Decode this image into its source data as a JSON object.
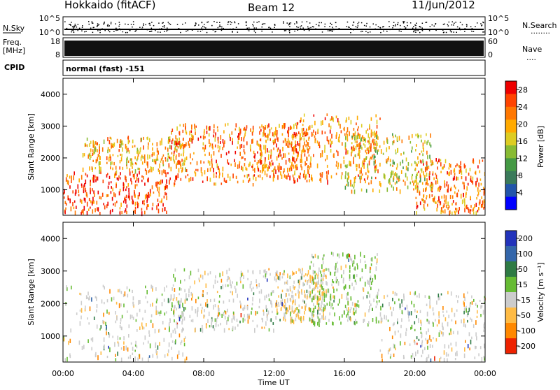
{
  "header": {
    "station": "Hokkaido (fitACF)",
    "beam": "Beam 12",
    "date": "11/Jun/2012"
  },
  "strips": {
    "nsky_label": "N.Sky",
    "nsearch_label": "N.Search",
    "nsearch_dots": "........",
    "nsky_ticks": [
      "10^5",
      "10^0"
    ],
    "nsearch_ticks": [
      "10^5",
      "10^0"
    ],
    "freq_label": "Freq.",
    "freq_unit": "[MHz]",
    "freq_ticks": [
      "18",
      "8"
    ],
    "nave_label": "Nave",
    "nave_dots": "....",
    "nave_ticks": [
      "60",
      "0"
    ],
    "cpid_label": "CPID",
    "cpid_text": "normal (fast) -151"
  },
  "chart_data": [
    {
      "type": "heatmap",
      "title": "",
      "xlabel": "Time UT",
      "ylabel": "Slant Range [km]",
      "xlim": [
        0,
        24
      ],
      "ylim": [
        200,
        4500
      ],
      "x_ticks": [
        "00:00",
        "04:00",
        "08:00",
        "12:00",
        "16:00",
        "20:00",
        "00:00"
      ],
      "x_tick_values": [
        0,
        4,
        8,
        12,
        16,
        20,
        24
      ],
      "y_ticks": [
        "1000",
        "2000",
        "3000",
        "4000"
      ],
      "y_tick_values": [
        1000,
        2000,
        3000,
        4000
      ],
      "colorbar": {
        "label": "Power [dB]",
        "ticks": [
          "4",
          "8",
          "12",
          "16",
          "20",
          "24",
          "28"
        ],
        "range": [
          0,
          30
        ],
        "colors": [
          "#0000ff",
          "#2255aa",
          "#3a7a5a",
          "#449944",
          "#88bb33",
          "#ddcc22",
          "#ffaa00",
          "#ff7700",
          "#ff4400",
          "#ee0000"
        ]
      },
      "bands": [
        {
          "name": "lower-strong",
          "t_start": 0,
          "t_end": 6,
          "r_low": 300,
          "r_high": 1600,
          "power": 26
        },
        {
          "name": "early-mid",
          "t_start": 1,
          "t_end": 7,
          "r_low": 1600,
          "r_high": 2700,
          "power": 20
        },
        {
          "name": "morning",
          "t_start": 6,
          "t_end": 11,
          "r_low": 1200,
          "r_high": 3100,
          "power": 22
        },
        {
          "name": "noon",
          "t_start": 11,
          "t_end": 14,
          "r_low": 1400,
          "r_high": 3100,
          "power": 24
        },
        {
          "name": "afternoon",
          "t_start": 13,
          "t_end": 18,
          "r_low": 1300,
          "r_high": 3400,
          "power": 22
        },
        {
          "name": "evening",
          "t_start": 16,
          "t_end": 21,
          "r_low": 1000,
          "r_high": 2800,
          "power": 18
        },
        {
          "name": "late",
          "t_start": 20,
          "t_end": 24,
          "r_low": 300,
          "r_high": 2000,
          "power": 24
        }
      ]
    },
    {
      "type": "heatmap",
      "title": "",
      "xlabel": "Time UT",
      "ylabel": "Slant Range [km]",
      "xlim": [
        0,
        24
      ],
      "ylim": [
        200,
        4500
      ],
      "x_ticks": [
        "00:00",
        "04:00",
        "08:00",
        "12:00",
        "16:00",
        "20:00",
        "00:00"
      ],
      "x_tick_values": [
        0,
        4,
        8,
        12,
        16,
        20,
        24
      ],
      "y_ticks": [
        "1000",
        "2000",
        "3000",
        "4000"
      ],
      "y_tick_values": [
        1000,
        2000,
        3000,
        4000
      ],
      "colorbar": {
        "label": "Velocity [m s⁻¹]",
        "ticks": [
          "200",
          "100",
          "50",
          "15",
          "-15",
          "-50",
          "-100",
          "-200"
        ],
        "colors": [
          "#2233bb",
          "#3366aa",
          "#2e7a44",
          "#66bb33",
          "#cccccc",
          "#ffbb44",
          "#ff8800",
          "#ee2200"
        ]
      },
      "bands": [
        {
          "name": "lower",
          "t_start": 0,
          "t_end": 7,
          "r_low": 300,
          "r_high": 2600,
          "velocity": 0
        },
        {
          "name": "morning",
          "t_start": 6,
          "t_end": 12,
          "r_low": 1200,
          "r_high": 3100,
          "velocity": 0
        },
        {
          "name": "noon",
          "t_start": 12,
          "t_end": 15,
          "r_low": 1500,
          "r_high": 3100,
          "velocity": -40
        },
        {
          "name": "afternoon",
          "t_start": 14,
          "t_end": 18,
          "r_low": 1400,
          "r_high": 3600,
          "velocity": 40
        },
        {
          "name": "evening",
          "t_start": 18,
          "t_end": 24,
          "r_low": 300,
          "r_high": 2400,
          "velocity": 0
        }
      ]
    }
  ]
}
